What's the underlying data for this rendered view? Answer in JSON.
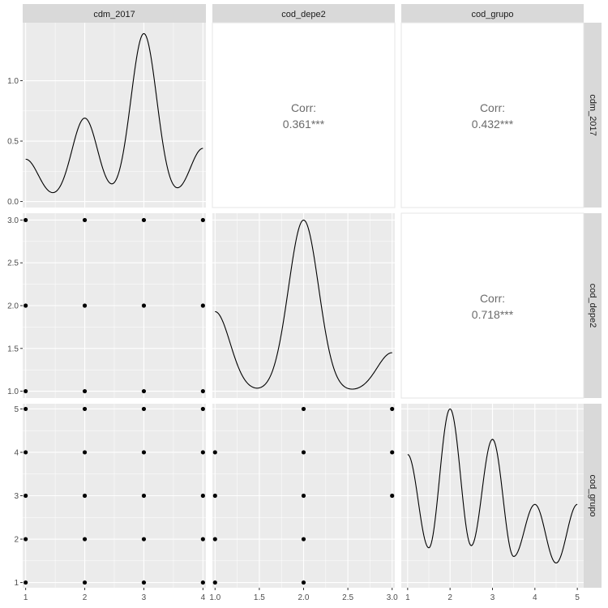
{
  "chart_data": {
    "type": "scatter",
    "variables": [
      "cdm_2017",
      "cod_depe2",
      "cod_grupo"
    ],
    "colors": {
      "panel_bg": "#ebebeb",
      "grid_major": "#ffffff",
      "strip_bg": "#d9d9d9",
      "tick_text": "#4d4d4d",
      "corr_text": "#6b6b6b",
      "ink": "#000000"
    },
    "axes": {
      "x": [
        {
          "ticks": [
            1,
            2,
            3,
            4
          ],
          "lim": [
            0.95,
            4.05
          ]
        },
        {
          "ticks": [
            1.0,
            1.5,
            2.0,
            2.5,
            3.0
          ],
          "tick_labels": [
            "1.0",
            "1.5",
            "2.0",
            "2.5",
            "3.0"
          ],
          "lim": [
            0.97,
            3.03
          ]
        },
        {
          "ticks": [
            1,
            2,
            3,
            4,
            5
          ],
          "lim": [
            0.85,
            5.15
          ]
        }
      ],
      "y": [
        {
          "ticks": [
            0.0,
            0.5,
            1.0
          ],
          "tick_labels": [
            "0.0",
            "0.5",
            "1.0"
          ],
          "lim": [
            -0.05,
            1.48
          ]
        },
        {
          "ticks": [
            1.0,
            1.5,
            2.0,
            2.5,
            3.0
          ],
          "tick_labels": [
            "1.0",
            "1.5",
            "2.0",
            "2.5",
            "3.0"
          ],
          "lim": [
            0.92,
            3.08
          ]
        },
        {
          "ticks": [
            1,
            2,
            3,
            4,
            5
          ],
          "lim": [
            0.88,
            5.12
          ]
        }
      ]
    },
    "diagonal_densities": [
      {
        "variable": "cdm_2017",
        "x": [
          1,
          4
        ],
        "peaks": [
          [
            1,
            0.35
          ],
          [
            2,
            0.69
          ],
          [
            3,
            1.39
          ],
          [
            4,
            0.44
          ]
        ],
        "bandwidth": 0.22
      },
      {
        "variable": "cod_depe2",
        "x": [
          1.0,
          3.0
        ],
        "peaks": [
          [
            1.0,
            1.93
          ],
          [
            2.0,
            3.0
          ],
          [
            3.0,
            1.45
          ]
        ],
        "baseline": 1.0,
        "bandwidth": 0.17
      },
      {
        "variable": "cod_grupo",
        "x": [
          1,
          5
        ],
        "peaks": [
          [
            1,
            3.95
          ],
          [
            2,
            5.0
          ],
          [
            3,
            4.3
          ],
          [
            4,
            2.8
          ],
          [
            5,
            2.8
          ]
        ],
        "troughs": [
          [
            1.5,
            1.8
          ],
          [
            2.5,
            1.85
          ],
          [
            3.5,
            1.6
          ],
          [
            4.5,
            1.45
          ]
        ]
      }
    ],
    "correlations": [
      {
        "row": 0,
        "col": 1,
        "label": "Corr:",
        "value": "0.361***"
      },
      {
        "row": 0,
        "col": 2,
        "label": "Corr:",
        "value": "0.432***"
      },
      {
        "row": 1,
        "col": 2,
        "label": "Corr:",
        "value": "0.718***"
      }
    ],
    "scatter": [
      {
        "row": 1,
        "col": 0,
        "points": [
          [
            1,
            3
          ],
          [
            2,
            3
          ],
          [
            3,
            3
          ],
          [
            4,
            3
          ],
          [
            1,
            2
          ],
          [
            2,
            2
          ],
          [
            3,
            2
          ],
          [
            4,
            2
          ],
          [
            1,
            1
          ],
          [
            2,
            1
          ],
          [
            3,
            1
          ],
          [
            4,
            1
          ]
        ]
      },
      {
        "row": 2,
        "col": 0,
        "points": [
          [
            1,
            5
          ],
          [
            2,
            5
          ],
          [
            3,
            5
          ],
          [
            4,
            5
          ],
          [
            1,
            4
          ],
          [
            2,
            4
          ],
          [
            3,
            4
          ],
          [
            4,
            4
          ],
          [
            1,
            3
          ],
          [
            2,
            3
          ],
          [
            3,
            3
          ],
          [
            4,
            3
          ],
          [
            1,
            2
          ],
          [
            2,
            2
          ],
          [
            3,
            2
          ],
          [
            4,
            2
          ],
          [
            1,
            1
          ],
          [
            2,
            1
          ],
          [
            3,
            1
          ],
          [
            4,
            1
          ]
        ]
      },
      {
        "row": 2,
        "col": 1,
        "points": [
          [
            2,
            5
          ],
          [
            3,
            5
          ],
          [
            1,
            4
          ],
          [
            2,
            4
          ],
          [
            3,
            4
          ],
          [
            1,
            3
          ],
          [
            2,
            3
          ],
          [
            3,
            3
          ],
          [
            1,
            2
          ],
          [
            2,
            2
          ],
          [
            1,
            1
          ],
          [
            2,
            1
          ]
        ]
      }
    ],
    "grid": true
  }
}
